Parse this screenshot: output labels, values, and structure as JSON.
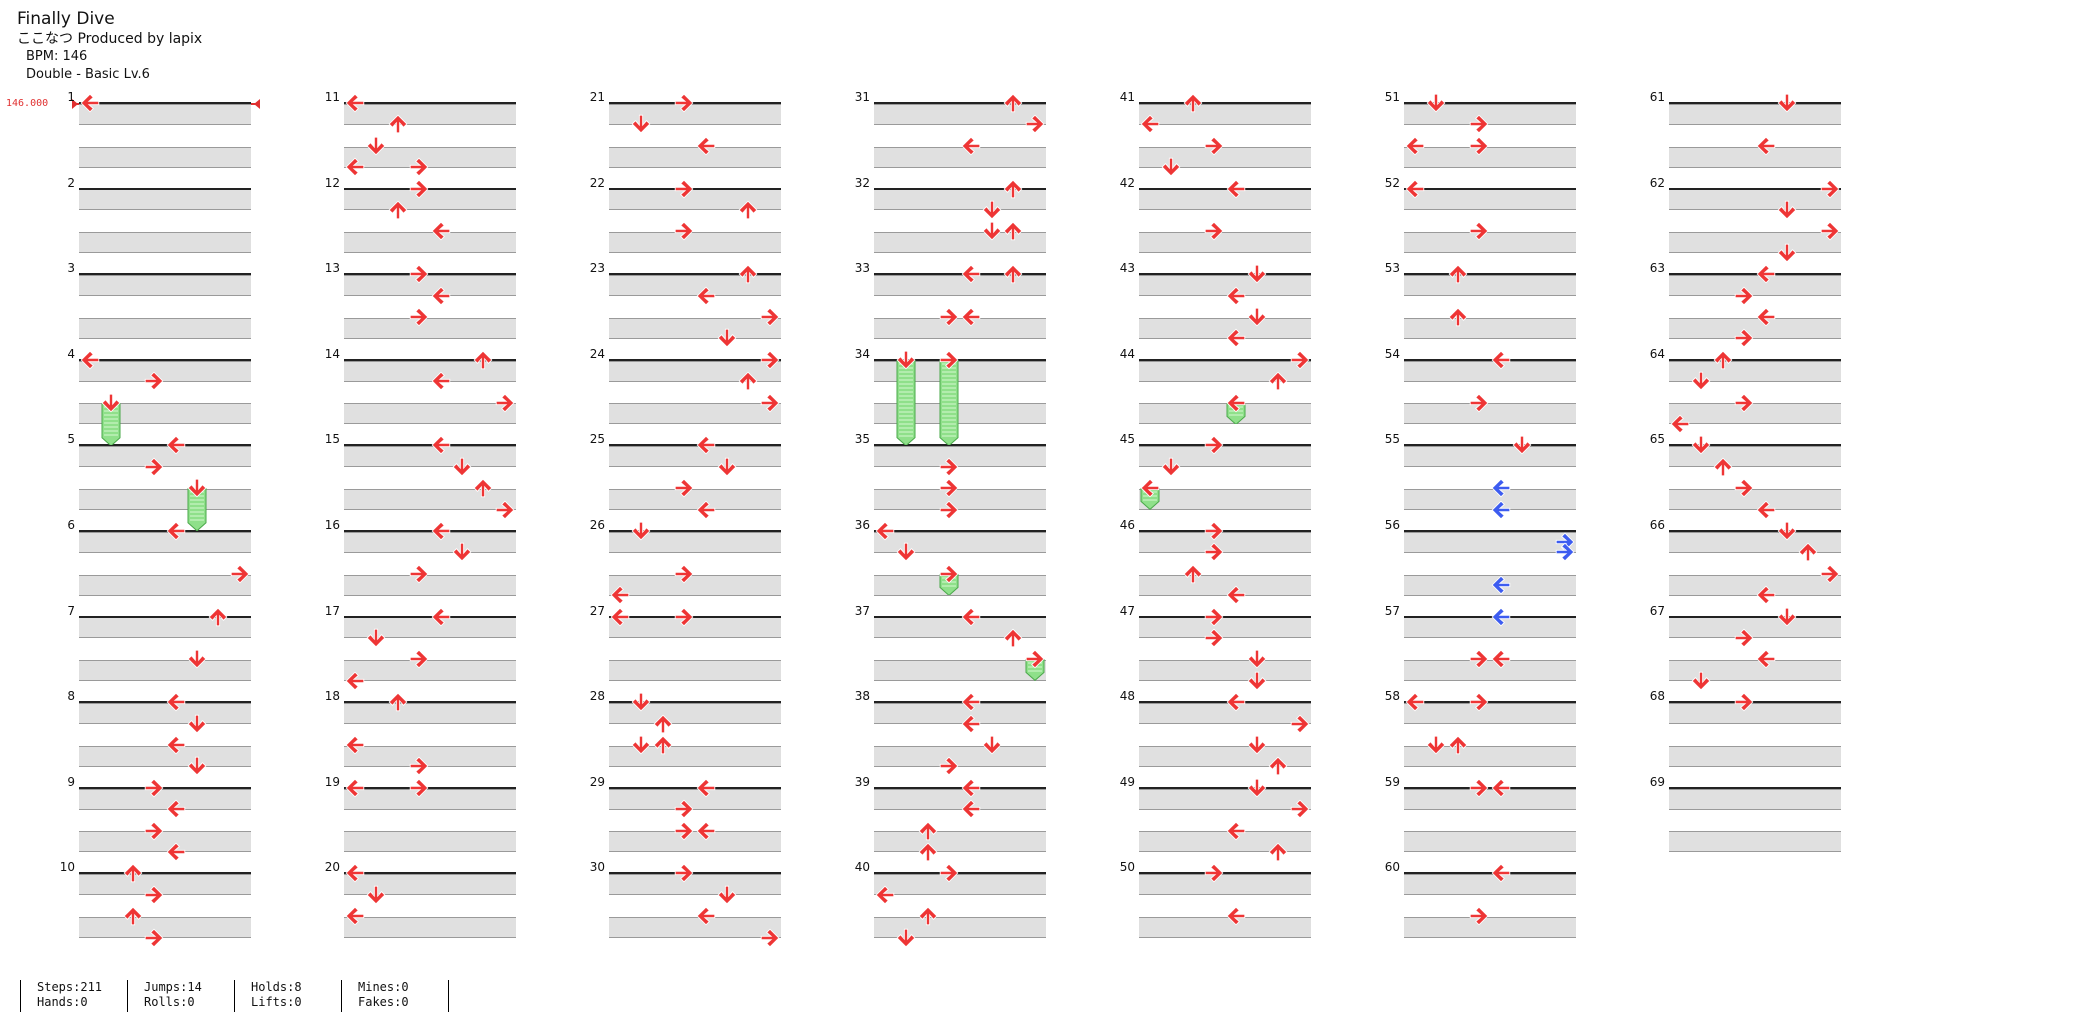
{
  "song": {
    "title": "Finally Dive",
    "artist": "ここなつ Produced by lapix",
    "bpm": "BPM: 146",
    "difficulty": "Double - Basic Lv.6"
  },
  "bpm_marker": {
    "label": "146.000"
  },
  "colors": {
    "note_red": "#ee3535",
    "note_blue": "#3d5cf0",
    "hold_green": "#8fe08a",
    "band_gray": "#e0e0e0"
  },
  "chart": {
    "columns": 7,
    "measures_per_column": 10,
    "total_measures": 69,
    "lanes": 8,
    "lane_labels": [
      "P1-left",
      "P1-down",
      "P1-up",
      "P1-right",
      "P2-left",
      "P2-down",
      "P2-up",
      "P2-right"
    ],
    "notes": [
      {
        "m": 1,
        "b": 0,
        "l": 0,
        "t": "left"
      },
      {
        "m": 4,
        "b": 0,
        "l": 0,
        "t": "left"
      },
      {
        "m": 4,
        "b": 1,
        "l": 3,
        "t": "right"
      },
      {
        "m": 4,
        "b": 2,
        "l": 1,
        "t": "down-hold",
        "len": 2
      },
      {
        "m": 5,
        "b": 0,
        "l": 4,
        "t": "left"
      },
      {
        "m": 5,
        "b": 1,
        "l": 3,
        "t": "right"
      },
      {
        "m": 5,
        "b": 2,
        "l": 5,
        "t": "down-hold",
        "len": 2
      },
      {
        "m": 6,
        "b": 0,
        "l": 4,
        "t": "left"
      },
      {
        "m": 6,
        "b": 2,
        "l": 7,
        "t": "right"
      },
      {
        "m": 7,
        "b": 0,
        "l": 6,
        "t": "up"
      },
      {
        "m": 7,
        "b": 2,
        "l": 5,
        "t": "down"
      },
      {
        "m": 8,
        "b": 0,
        "l": 4,
        "t": "left"
      },
      {
        "m": 8,
        "b": 1,
        "l": 5,
        "t": "down"
      },
      {
        "m": 8,
        "b": 2,
        "l": 4,
        "t": "left"
      },
      {
        "m": 8,
        "b": 3,
        "l": 5,
        "t": "down"
      },
      {
        "m": 9,
        "b": 0,
        "l": 3,
        "t": "right"
      },
      {
        "m": 9,
        "b": 1,
        "l": 4,
        "t": "left"
      },
      {
        "m": 9,
        "b": 2,
        "l": 3,
        "t": "right"
      },
      {
        "m": 9,
        "b": 3,
        "l": 4,
        "t": "left"
      },
      {
        "m": 10,
        "b": 0,
        "l": 2,
        "t": "up"
      },
      {
        "m": 10,
        "b": 1,
        "l": 3,
        "t": "right"
      },
      {
        "m": 10,
        "b": 2,
        "l": 2,
        "t": "up"
      },
      {
        "m": 10,
        "b": 3,
        "l": 3,
        "t": "right"
      },
      {
        "m": 11,
        "b": 0,
        "l": 0,
        "t": "left"
      },
      {
        "m": 11,
        "b": 1,
        "l": 2,
        "t": "up"
      },
      {
        "m": 11,
        "b": 2,
        "l": 1,
        "t": "down"
      },
      {
        "m": 11,
        "b": 3,
        "l": 0,
        "t": "left"
      },
      {
        "m": 11,
        "b": 3,
        "l": 3,
        "t": "right"
      },
      {
        "m": 12,
        "b": 0,
        "l": 3,
        "t": "right"
      },
      {
        "m": 12,
        "b": 1,
        "l": 2,
        "t": "up"
      },
      {
        "m": 12,
        "b": 2,
        "l": 4,
        "t": "left"
      },
      {
        "m": 13,
        "b": 0,
        "l": 3,
        "t": "right"
      },
      {
        "m": 13,
        "b": 1,
        "l": 4,
        "t": "left"
      },
      {
        "m": 13,
        "b": 2,
        "l": 3,
        "t": "right"
      },
      {
        "m": 14,
        "b": 0,
        "l": 6,
        "t": "up"
      },
      {
        "m": 14,
        "b": 1,
        "l": 4,
        "t": "left"
      },
      {
        "m": 14,
        "b": 2,
        "l": 7,
        "t": "right"
      },
      {
        "m": 15,
        "b": 0,
        "l": 4,
        "t": "left"
      },
      {
        "m": 15,
        "b": 1,
        "l": 5,
        "t": "down"
      },
      {
        "m": 15,
        "b": 2,
        "l": 6,
        "t": "up"
      },
      {
        "m": 15,
        "b": 3,
        "l": 7,
        "t": "right"
      },
      {
        "m": 16,
        "b": 0,
        "l": 4,
        "t": "left"
      },
      {
        "m": 16,
        "b": 1,
        "l": 5,
        "t": "down"
      },
      {
        "m": 16,
        "b": 2,
        "l": 3,
        "t": "right"
      },
      {
        "m": 17,
        "b": 0,
        "l": 4,
        "t": "left"
      },
      {
        "m": 17,
        "b": 1,
        "l": 1,
        "t": "down"
      },
      {
        "m": 17,
        "b": 2,
        "l": 3,
        "t": "right"
      },
      {
        "m": 17,
        "b": 3,
        "l": 0,
        "t": "left"
      },
      {
        "m": 18,
        "b": 0,
        "l": 2,
        "t": "up"
      },
      {
        "m": 18,
        "b": 2,
        "l": 0,
        "t": "left"
      },
      {
        "m": 18,
        "b": 3,
        "l": 3,
        "t": "right"
      },
      {
        "m": 19,
        "b": 0,
        "l": 0,
        "t": "left"
      },
      {
        "m": 19,
        "b": 0,
        "l": 3,
        "t": "right"
      },
      {
        "m": 20,
        "b": 0,
        "l": 0,
        "t": "left"
      },
      {
        "m": 20,
        "b": 1,
        "l": 1,
        "t": "down"
      },
      {
        "m": 20,
        "b": 2,
        "l": 0,
        "t": "left"
      },
      {
        "m": 21,
        "b": 0,
        "l": 3,
        "t": "right"
      },
      {
        "m": 21,
        "b": 1,
        "l": 1,
        "t": "down"
      },
      {
        "m": 21,
        "b": 2,
        "l": 4,
        "t": "left"
      },
      {
        "m": 22,
        "b": 0,
        "l": 3,
        "t": "right"
      },
      {
        "m": 22,
        "b": 1,
        "l": 6,
        "t": "up"
      },
      {
        "m": 22,
        "b": 2,
        "l": 3,
        "t": "right"
      },
      {
        "m": 23,
        "b": 0,
        "l": 6,
        "t": "up"
      },
      {
        "m": 23,
        "b": 1,
        "l": 4,
        "t": "left"
      },
      {
        "m": 23,
        "b": 2,
        "l": 7,
        "t": "right"
      },
      {
        "m": 23,
        "b": 3,
        "l": 5,
        "t": "down"
      },
      {
        "m": 24,
        "b": 0,
        "l": 7,
        "t": "right"
      },
      {
        "m": 24,
        "b": 1,
        "l": 6,
        "t": "up"
      },
      {
        "m": 24,
        "b": 2,
        "l": 7,
        "t": "right"
      },
      {
        "m": 25,
        "b": 0,
        "l": 4,
        "t": "left"
      },
      {
        "m": 25,
        "b": 1,
        "l": 5,
        "t": "down"
      },
      {
        "m": 25,
        "b": 2,
        "l": 3,
        "t": "right"
      },
      {
        "m": 25,
        "b": 3,
        "l": 4,
        "t": "left"
      },
      {
        "m": 26,
        "b": 0,
        "l": 1,
        "t": "down"
      },
      {
        "m": 26,
        "b": 2,
        "l": 3,
        "t": "right"
      },
      {
        "m": 26,
        "b": 3,
        "l": 0,
        "t": "left"
      },
      {
        "m": 27,
        "b": 0,
        "l": 0,
        "t": "left"
      },
      {
        "m": 27,
        "b": 0,
        "l": 3,
        "t": "right"
      },
      {
        "m": 28,
        "b": 0,
        "l": 1,
        "t": "down"
      },
      {
        "m": 28,
        "b": 1,
        "l": 2,
        "t": "up"
      },
      {
        "m": 28,
        "b": 2,
        "l": 1,
        "t": "down"
      },
      {
        "m": 28,
        "b": 2,
        "l": 2,
        "t": "up"
      },
      {
        "m": 29,
        "b": 0,
        "l": 4,
        "t": "left"
      },
      {
        "m": 29,
        "b": 1,
        "l": 3,
        "t": "right"
      },
      {
        "m": 29,
        "b": 2,
        "l": 3,
        "t": "right"
      },
      {
        "m": 29,
        "b": 2,
        "l": 4,
        "t": "left"
      },
      {
        "m": 30,
        "b": 0,
        "l": 3,
        "t": "right"
      },
      {
        "m": 30,
        "b": 1,
        "l": 5,
        "t": "down"
      },
      {
        "m": 30,
        "b": 2,
        "l": 4,
        "t": "left"
      },
      {
        "m": 30,
        "b": 3,
        "l": 7,
        "t": "right"
      },
      {
        "m": 31,
        "b": 0,
        "l": 6,
        "t": "up"
      },
      {
        "m": 31,
        "b": 1,
        "l": 7,
        "t": "right"
      },
      {
        "m": 31,
        "b": 2,
        "l": 4,
        "t": "left"
      },
      {
        "m": 32,
        "b": 0,
        "l": 6,
        "t": "up"
      },
      {
        "m": 32,
        "b": 1,
        "l": 5,
        "t": "down"
      },
      {
        "m": 32,
        "b": 2,
        "l": 5,
        "t": "down"
      },
      {
        "m": 32,
        "b": 2,
        "l": 6,
        "t": "up"
      },
      {
        "m": 33,
        "b": 0,
        "l": 4,
        "t": "left"
      },
      {
        "m": 33,
        "b": 0,
        "l": 6,
        "t": "up"
      },
      {
        "m": 33,
        "b": 2,
        "l": 3,
        "t": "right"
      },
      {
        "m": 33,
        "b": 2,
        "l": 4,
        "t": "left"
      },
      {
        "m": 34,
        "b": 0,
        "l": 1,
        "t": "down-hold",
        "len": 4
      },
      {
        "m": 34,
        "b": 0,
        "l": 3,
        "t": "right-hold",
        "len": 4
      },
      {
        "m": 35,
        "b": 1,
        "l": 3,
        "t": "right"
      },
      {
        "m": 35,
        "b": 2,
        "l": 3,
        "t": "right"
      },
      {
        "m": 35,
        "b": 3,
        "l": 3,
        "t": "right"
      },
      {
        "m": 36,
        "b": 0,
        "l": 0,
        "t": "left"
      },
      {
        "m": 36,
        "b": 1,
        "l": 1,
        "t": "down"
      },
      {
        "m": 36,
        "b": 2,
        "l": 3,
        "t": "right-hold",
        "len": 1
      },
      {
        "m": 37,
        "b": 0,
        "l": 4,
        "t": "left"
      },
      {
        "m": 37,
        "b": 1,
        "l": 6,
        "t": "up"
      },
      {
        "m": 37,
        "b": 2,
        "l": 7,
        "t": "right-hold",
        "len": 1
      },
      {
        "m": 38,
        "b": 0,
        "l": 4,
        "t": "left"
      },
      {
        "m": 38,
        "b": 1,
        "l": 4,
        "t": "left"
      },
      {
        "m": 38,
        "b": 2,
        "l": 5,
        "t": "down"
      },
      {
        "m": 38,
        "b": 3,
        "l": 3,
        "t": "right"
      },
      {
        "m": 39,
        "b": 0,
        "l": 4,
        "t": "left"
      },
      {
        "m": 39,
        "b": 1,
        "l": 4,
        "t": "left"
      },
      {
        "m": 39,
        "b": 2,
        "l": 2,
        "t": "up"
      },
      {
        "m": 39,
        "b": 3,
        "l": 2,
        "t": "up"
      },
      {
        "m": 40,
        "b": 0,
        "l": 3,
        "t": "right"
      },
      {
        "m": 40,
        "b": 1,
        "l": 0,
        "t": "left"
      },
      {
        "m": 40,
        "b": 2,
        "l": 2,
        "t": "up"
      },
      {
        "m": 40,
        "b": 3,
        "l": 1,
        "t": "down"
      },
      {
        "m": 41,
        "b": 0,
        "l": 2,
        "t": "up"
      },
      {
        "m": 41,
        "b": 1,
        "l": 0,
        "t": "left"
      },
      {
        "m": 41,
        "b": 2,
        "l": 3,
        "t": "right"
      },
      {
        "m": 41,
        "b": 3,
        "l": 1,
        "t": "down"
      },
      {
        "m": 42,
        "b": 0,
        "l": 4,
        "t": "left"
      },
      {
        "m": 42,
        "b": 2,
        "l": 3,
        "t": "right"
      },
      {
        "m": 43,
        "b": 0,
        "l": 5,
        "t": "down"
      },
      {
        "m": 43,
        "b": 1,
        "l": 4,
        "t": "left"
      },
      {
        "m": 43,
        "b": 2,
        "l": 5,
        "t": "down"
      },
      {
        "m": 43,
        "b": 3,
        "l": 4,
        "t": "left"
      },
      {
        "m": 44,
        "b": 0,
        "l": 7,
        "t": "right"
      },
      {
        "m": 44,
        "b": 1,
        "l": 6,
        "t": "up"
      },
      {
        "m": 44,
        "b": 2,
        "l": 4,
        "t": "left-hold",
        "len": 1
      },
      {
        "m": 45,
        "b": 0,
        "l": 3,
        "t": "right"
      },
      {
        "m": 45,
        "b": 1,
        "l": 1,
        "t": "down"
      },
      {
        "m": 45,
        "b": 2,
        "l": 0,
        "t": "left-hold",
        "len": 1
      },
      {
        "m": 46,
        "b": 0,
        "l": 3,
        "t": "right"
      },
      {
        "m": 46,
        "b": 1,
        "l": 3,
        "t": "right"
      },
      {
        "m": 46,
        "b": 2,
        "l": 2,
        "t": "up"
      },
      {
        "m": 46,
        "b": 3,
        "l": 4,
        "t": "left"
      },
      {
        "m": 47,
        "b": 0,
        "l": 3,
        "t": "right"
      },
      {
        "m": 47,
        "b": 1,
        "l": 3,
        "t": "right"
      },
      {
        "m": 47,
        "b": 2,
        "l": 5,
        "t": "down"
      },
      {
        "m": 47,
        "b": 3,
        "l": 5,
        "t": "down"
      },
      {
        "m": 48,
        "b": 0,
        "l": 4,
        "t": "left"
      },
      {
        "m": 48,
        "b": 1,
        "l": 7,
        "t": "right"
      },
      {
        "m": 48,
        "b": 2,
        "l": 5,
        "t": "down"
      },
      {
        "m": 48,
        "b": 3,
        "l": 6,
        "t": "up"
      },
      {
        "m": 49,
        "b": 0,
        "l": 5,
        "t": "down"
      },
      {
        "m": 49,
        "b": 1,
        "l": 7,
        "t": "right"
      },
      {
        "m": 49,
        "b": 2,
        "l": 4,
        "t": "left"
      },
      {
        "m": 49,
        "b": 3,
        "l": 6,
        "t": "up"
      },
      {
        "m": 50,
        "b": 0,
        "l": 3,
        "t": "right"
      },
      {
        "m": 50,
        "b": 2,
        "l": 4,
        "t": "left"
      },
      {
        "m": 51,
        "b": 0,
        "l": 1,
        "t": "down"
      },
      {
        "m": 51,
        "b": 1,
        "l": 3,
        "t": "right"
      },
      {
        "m": 51,
        "b": 2,
        "l": 0,
        "t": "left"
      },
      {
        "m": 51,
        "b": 2,
        "l": 3,
        "t": "right"
      },
      {
        "m": 52,
        "b": 0,
        "l": 0,
        "t": "left"
      },
      {
        "m": 52,
        "b": 2,
        "l": 3,
        "t": "right"
      },
      {
        "m": 53,
        "b": 0,
        "l": 2,
        "t": "up"
      },
      {
        "m": 53,
        "b": 2,
        "l": 2,
        "t": "up"
      },
      {
        "m": 54,
        "b": 0,
        "l": 4,
        "t": "left"
      },
      {
        "m": 54,
        "b": 2,
        "l": 3,
        "t": "right"
      },
      {
        "m": 55,
        "b": 0,
        "l": 5,
        "t": "down"
      },
      {
        "m": 55,
        "b": 2,
        "l": 4,
        "t": "left",
        "c": "blue"
      },
      {
        "m": 55,
        "b": 3,
        "l": 4,
        "t": "left",
        "c": "blue"
      },
      {
        "m": 56,
        "b": 0.5,
        "l": 7,
        "t": "right",
        "c": "blue"
      },
      {
        "m": 56,
        "b": 1,
        "l": 7,
        "t": "right",
        "c": "blue"
      },
      {
        "m": 56,
        "b": 2.5,
        "l": 4,
        "t": "left",
        "c": "blue"
      },
      {
        "m": 57,
        "b": 0,
        "l": 4,
        "t": "left",
        "c": "blue"
      },
      {
        "m": 57,
        "b": 2,
        "l": 3,
        "t": "right"
      },
      {
        "m": 57,
        "b": 2,
        "l": 4,
        "t": "left"
      },
      {
        "m": 58,
        "b": 0,
        "l": 0,
        "t": "left"
      },
      {
        "m": 58,
        "b": 0,
        "l": 3,
        "t": "right"
      },
      {
        "m": 58,
        "b": 2,
        "l": 1,
        "t": "down"
      },
      {
        "m": 58,
        "b": 2,
        "l": 2,
        "t": "up"
      },
      {
        "m": 59,
        "b": 0,
        "l": 3,
        "t": "right"
      },
      {
        "m": 59,
        "b": 0,
        "l": 4,
        "t": "left"
      },
      {
        "m": 60,
        "b": 0,
        "l": 4,
        "t": "left"
      },
      {
        "m": 60,
        "b": 2,
        "l": 3,
        "t": "right"
      },
      {
        "m": 61,
        "b": 0,
        "l": 5,
        "t": "down"
      },
      {
        "m": 61,
        "b": 2,
        "l": 4,
        "t": "left"
      },
      {
        "m": 62,
        "b": 0,
        "l": 7,
        "t": "right"
      },
      {
        "m": 62,
        "b": 1,
        "l": 5,
        "t": "down"
      },
      {
        "m": 62,
        "b": 2,
        "l": 7,
        "t": "right"
      },
      {
        "m": 62,
        "b": 3,
        "l": 5,
        "t": "down"
      },
      {
        "m": 63,
        "b": 0,
        "l": 4,
        "t": "left"
      },
      {
        "m": 63,
        "b": 1,
        "l": 3,
        "t": "right"
      },
      {
        "m": 63,
        "b": 2,
        "l": 4,
        "t": "left"
      },
      {
        "m": 63,
        "b": 3,
        "l": 3,
        "t": "right"
      },
      {
        "m": 64,
        "b": 0,
        "l": 2,
        "t": "up"
      },
      {
        "m": 64,
        "b": 1,
        "l": 1,
        "t": "down"
      },
      {
        "m": 64,
        "b": 2,
        "l": 3,
        "t": "right"
      },
      {
        "m": 64,
        "b": 3,
        "l": 0,
        "t": "left"
      },
      {
        "m": 65,
        "b": 0,
        "l": 1,
        "t": "down"
      },
      {
        "m": 65,
        "b": 1,
        "l": 2,
        "t": "up"
      },
      {
        "m": 65,
        "b": 2,
        "l": 3,
        "t": "right"
      },
      {
        "m": 65,
        "b": 3,
        "l": 4,
        "t": "left"
      },
      {
        "m": 66,
        "b": 0,
        "l": 5,
        "t": "down"
      },
      {
        "m": 66,
        "b": 1,
        "l": 6,
        "t": "up"
      },
      {
        "m": 66,
        "b": 2,
        "l": 7,
        "t": "right"
      },
      {
        "m": 66,
        "b": 3,
        "l": 4,
        "t": "left"
      },
      {
        "m": 67,
        "b": 0,
        "l": 5,
        "t": "down"
      },
      {
        "m": 67,
        "b": 1,
        "l": 3,
        "t": "right"
      },
      {
        "m": 67,
        "b": 2,
        "l": 4,
        "t": "left"
      },
      {
        "m": 67,
        "b": 3,
        "l": 1,
        "t": "down"
      },
      {
        "m": 68,
        "b": 0,
        "l": 3,
        "t": "right"
      }
    ]
  },
  "stats": [
    {
      "a": "Steps:211",
      "b": "Hands:0"
    },
    {
      "a": "Jumps:14",
      "b": "Rolls:0"
    },
    {
      "a": "Holds:8",
      "b": "Lifts:0"
    },
    {
      "a": "Mines:0",
      "b": "Fakes:0"
    }
  ]
}
